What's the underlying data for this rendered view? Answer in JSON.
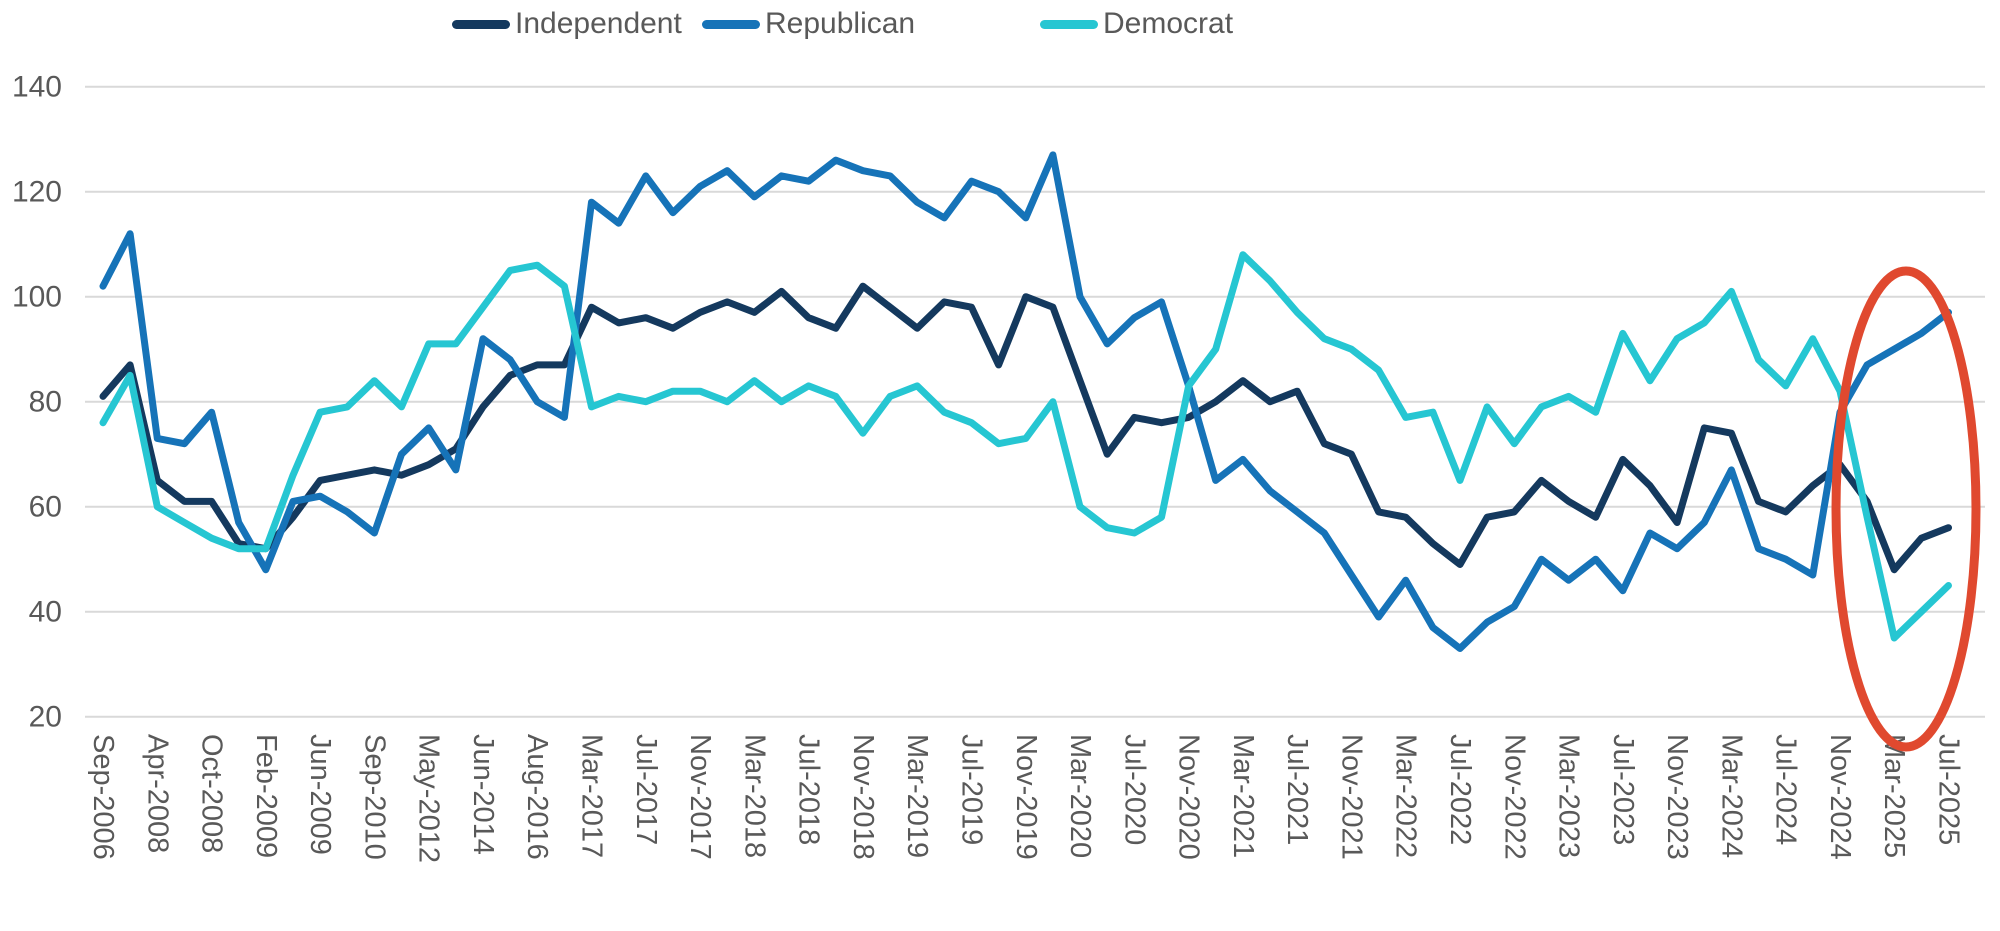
{
  "colors": {
    "independent": "#14395e",
    "republican": "#1673b8",
    "democrat": "#26c6d2",
    "annotation_red": "#e0492f",
    "gridline": "#d9d9d9",
    "axis_text": "#595959"
  },
  "chart_data": {
    "type": "line",
    "legend_position": "top",
    "grid": "horizontal",
    "ylim": [
      20,
      140
    ],
    "yticks": [
      140,
      120,
      100,
      80,
      60,
      40,
      20
    ],
    "x_tick_labels": [
      "Sep-2006",
      "Apr-2008",
      "Oct-2008",
      "Feb-2009",
      "Jun-2009",
      "Sep-2010",
      "May-2012",
      "Jun-2014",
      "Aug-2016",
      "Mar-2017",
      "Jul-2017",
      "Nov-2017",
      "Mar-2018",
      "Jul-2018",
      "Nov-2018",
      "Mar-2019",
      "Jul-2019",
      "Nov-2019",
      "Mar-2020",
      "Jul-2020",
      "Nov-2020",
      "Mar-2021",
      "Jul-2021",
      "Nov-2021",
      "Mar-2022",
      "Jul-2022",
      "Nov-2022",
      "Mar-2023",
      "Jul-2023",
      "Nov-2023",
      "Mar-2024",
      "Jul-2024",
      "Nov-2024",
      "Mar-2025",
      "Jul-2025"
    ],
    "points_per_label_interval": 2,
    "series": [
      {
        "name": "Independent",
        "color": "#14395e",
        "values": [
          81,
          87,
          65,
          61,
          61,
          53,
          52,
          58,
          65,
          66,
          67,
          66,
          68,
          71,
          79,
          85,
          87,
          87,
          98,
          95,
          96,
          94,
          97,
          99,
          97,
          101,
          96,
          94,
          102,
          98,
          94,
          99,
          98,
          87,
          100,
          98,
          84,
          70,
          77,
          76,
          77,
          80,
          84,
          80,
          82,
          72,
          70,
          59,
          58,
          53,
          49,
          58,
          59,
          65,
          61,
          58,
          69,
          64,
          57,
          75,
          74,
          61,
          59,
          64,
          68,
          61,
          48,
          54,
          56
        ]
      },
      {
        "name": "Republican",
        "color": "#1673b8",
        "values": [
          102,
          112,
          73,
          72,
          78,
          57,
          48,
          61,
          62,
          59,
          55,
          70,
          75,
          67,
          92,
          88,
          80,
          77,
          118,
          114,
          123,
          116,
          121,
          124,
          119,
          123,
          122,
          126,
          124,
          123,
          118,
          115,
          122,
          120,
          115,
          127,
          100,
          91,
          96,
          99,
          83,
          65,
          69,
          63,
          59,
          55,
          47,
          39,
          46,
          37,
          33,
          38,
          41,
          50,
          46,
          50,
          44,
          55,
          52,
          57,
          67,
          52,
          50,
          47,
          78,
          87,
          90,
          93,
          97
        ]
      },
      {
        "name": "Democrat",
        "color": "#26c6d2",
        "values": [
          76,
          85,
          60,
          57,
          54,
          52,
          52,
          66,
          78,
          79,
          84,
          79,
          91,
          91,
          98,
          105,
          106,
          102,
          79,
          81,
          80,
          82,
          82,
          80,
          84,
          80,
          83,
          81,
          74,
          81,
          83,
          78,
          76,
          72,
          73,
          80,
          60,
          56,
          55,
          58,
          83,
          90,
          108,
          103,
          97,
          92,
          90,
          86,
          77,
          78,
          65,
          79,
          72,
          79,
          81,
          78,
          93,
          84,
          92,
          95,
          101,
          88,
          83,
          92,
          82,
          58,
          35,
          40,
          45
        ]
      }
    ],
    "annotation": {
      "shape": "ellipse",
      "color": "#e0492f",
      "covers_x_range": "Nov-2024 to Jul-2025",
      "covers_value_range": [
        20,
        105
      ]
    }
  }
}
